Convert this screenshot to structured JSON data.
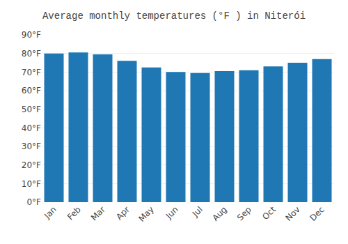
{
  "chart_data": {
    "type": "bar",
    "title": "Average monthly temperatures (°F ) in Niterói",
    "categories": [
      "Jan",
      "Feb",
      "Mar",
      "Apr",
      "May",
      "Jun",
      "Jul",
      "Aug",
      "Sep",
      "Oct",
      "Nov",
      "Dec"
    ],
    "values": [
      80,
      80.5,
      79.5,
      76,
      72.5,
      70,
      69.5,
      70.5,
      71,
      73,
      75,
      77
    ],
    "ylim": [
      0,
      90
    ],
    "yticks": [
      {
        "value": 0,
        "label": "0°F"
      },
      {
        "value": 10,
        "label": "10°F"
      },
      {
        "value": 20,
        "label": "20°F"
      },
      {
        "value": 30,
        "label": "30°F"
      },
      {
        "value": 40,
        "label": "40°F"
      },
      {
        "value": 50,
        "label": "50°F"
      },
      {
        "value": 60,
        "label": "60°F"
      },
      {
        "value": 70,
        "label": "70°F"
      },
      {
        "value": 80,
        "label": "80°F"
      },
      {
        "value": 90,
        "label": "90°F"
      }
    ],
    "grid": true
  }
}
